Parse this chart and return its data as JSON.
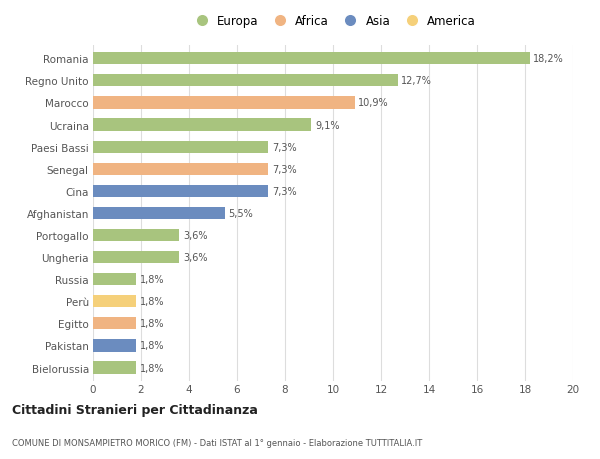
{
  "categories": [
    "Romania",
    "Regno Unito",
    "Marocco",
    "Ucraina",
    "Paesi Bassi",
    "Senegal",
    "Cina",
    "Afghanistan",
    "Portogallo",
    "Ungheria",
    "Russia",
    "Perù",
    "Egitto",
    "Pakistan",
    "Bielorussia"
  ],
  "values": [
    18.2,
    12.7,
    10.9,
    9.1,
    7.3,
    7.3,
    7.3,
    5.5,
    3.6,
    3.6,
    1.8,
    1.8,
    1.8,
    1.8,
    1.8
  ],
  "labels": [
    "18,2%",
    "12,7%",
    "10,9%",
    "9,1%",
    "7,3%",
    "7,3%",
    "7,3%",
    "5,5%",
    "3,6%",
    "3,6%",
    "1,8%",
    "1,8%",
    "1,8%",
    "1,8%",
    "1,8%"
  ],
  "continents": [
    "Europa",
    "Europa",
    "Africa",
    "Europa",
    "Europa",
    "Africa",
    "Asia",
    "Asia",
    "Europa",
    "Europa",
    "Europa",
    "America",
    "Africa",
    "Asia",
    "Europa"
  ],
  "colors": {
    "Europa": "#a8c47e",
    "Africa": "#f0b482",
    "Asia": "#6b8cbf",
    "America": "#f5d07a"
  },
  "legend_order": [
    "Europa",
    "Africa",
    "Asia",
    "America"
  ],
  "title": "Cittadini Stranieri per Cittadinanza",
  "subtitle": "COMUNE DI MONSAMPIETRO MORICO (FM) - Dati ISTAT al 1° gennaio - Elaborazione TUTTITALIA.IT",
  "xlim": [
    0,
    20
  ],
  "xticks": [
    0,
    2,
    4,
    6,
    8,
    10,
    12,
    14,
    16,
    18,
    20
  ],
  "background_color": "#ffffff",
  "grid_color": "#dddddd"
}
